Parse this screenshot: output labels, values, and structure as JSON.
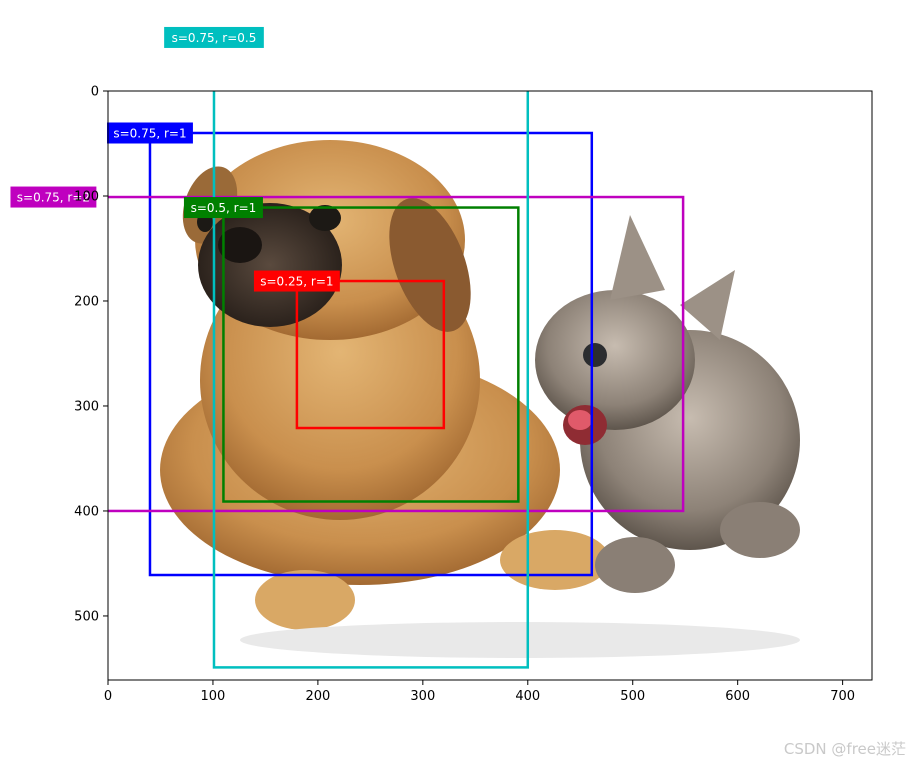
{
  "chart_data": {
    "type": "image_with_anchor_boxes",
    "x_ticks": [
      0,
      100,
      200,
      300,
      400,
      500,
      600,
      700
    ],
    "y_ticks": [
      0,
      100,
      200,
      300,
      400,
      500
    ],
    "xlim": [
      0,
      728
    ],
    "ylim": [
      561,
      0
    ],
    "boxes": [
      {
        "label": "s=0.75, r=1",
        "color": "#0000ff",
        "x1": 40,
        "y1": 40,
        "x2": 461,
        "y2": 461
      },
      {
        "label": "s=0.5, r=1",
        "color": "#008000",
        "x1": 110,
        "y1": 111,
        "x2": 391,
        "y2": 391
      },
      {
        "label": "s=0.25, r=1",
        "color": "#ff0000",
        "x1": 180,
        "y1": 181,
        "x2": 320,
        "y2": 321
      },
      {
        "label": "s=0.75, r=2",
        "color": "#bf00bf",
        "x1": -52,
        "y1": 101,
        "x2": 548,
        "y2": 400
      },
      {
        "label": "s=0.75, r=0.5",
        "color": "#00bfbf",
        "x1": 101,
        "y1": -51,
        "x2": 400,
        "y2": 549
      }
    ]
  },
  "watermark": "CSDN @free迷茫"
}
